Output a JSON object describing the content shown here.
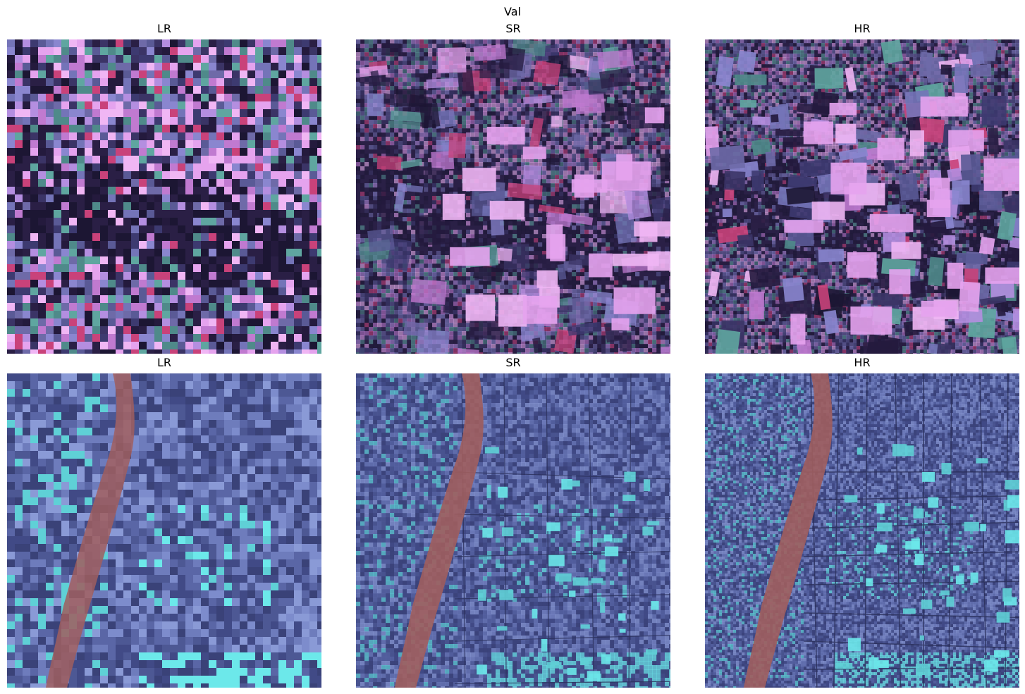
{
  "figure": {
    "title": "Val",
    "rows": [
      {
        "panels": [
          {
            "title": "LR",
            "scene": "agricultural-fields",
            "resolution": "low"
          },
          {
            "title": "SR",
            "scene": "agricultural-fields",
            "resolution": "super"
          },
          {
            "title": "HR",
            "scene": "agricultural-fields",
            "resolution": "high"
          }
        ]
      },
      {
        "panels": [
          {
            "title": "LR",
            "scene": "river-and-urban-grid",
            "resolution": "low"
          },
          {
            "title": "SR",
            "scene": "river-and-urban-grid",
            "resolution": "super"
          },
          {
            "title": "HR",
            "scene": "river-and-urban-grid",
            "resolution": "high"
          }
        ]
      }
    ]
  }
}
